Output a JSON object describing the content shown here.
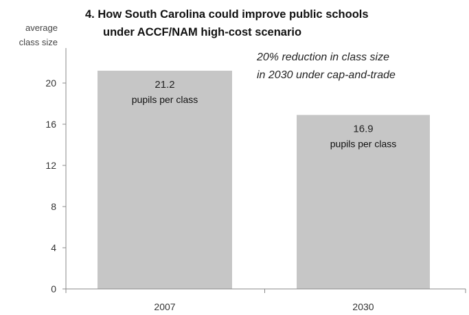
{
  "chart_data": {
    "type": "bar",
    "title_lines": [
      "4. How South Carolina could improve public schools",
      "under ACCF/NAM high-cost scenario"
    ],
    "ylabel_lines": [
      "average",
      "class size"
    ],
    "categories": [
      "2007",
      "2030"
    ],
    "values": [
      21.2,
      16.9
    ],
    "value_labels": [
      "21.2",
      "16.9"
    ],
    "unit_label": "pupils per class",
    "yticks": [
      0,
      4,
      8,
      12,
      16,
      20
    ],
    "ylim": [
      0,
      24
    ],
    "grid": false,
    "annotation_lines": [
      "20% reduction in class size",
      "in 2030 under cap-and-trade"
    ],
    "colors": {
      "bar": "#c6c6c6",
      "axis": "#888888"
    }
  }
}
